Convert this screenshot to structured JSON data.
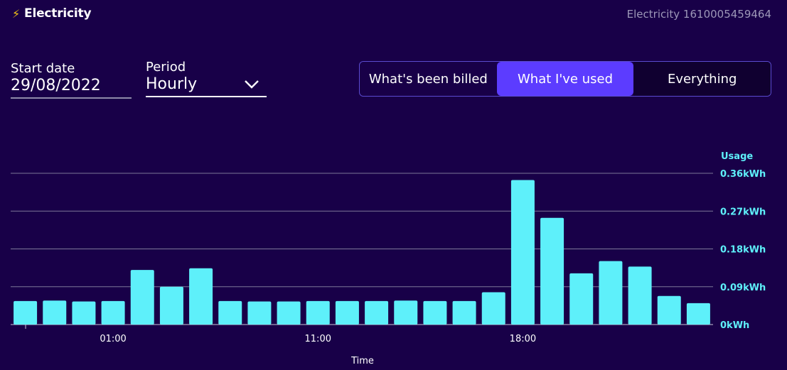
{
  "header": {
    "title": "Electricity",
    "account_label": "Electricity 1610005459464"
  },
  "filters": {
    "start_date_label": "Start date",
    "start_date_value": "29/08/2022",
    "period_label": "Period",
    "period_value": "Hourly"
  },
  "toggle": {
    "options": [
      "What's been billed",
      "What I've used",
      "Everything"
    ],
    "selected": "What I've used"
  },
  "colors": {
    "bar": "#5ef0fa",
    "accent": "#5c3cff",
    "background": "#180048",
    "grid": "#7d7899"
  },
  "chart_data": {
    "type": "bar",
    "ylabel": "Usage",
    "xlabel": "Time",
    "ylim": [
      0,
      0.36
    ],
    "yticks": [
      "0kWh",
      "0.09kWh",
      "0.18kWh",
      "0.27kWh",
      "0.36kWh"
    ],
    "ytick_values": [
      0,
      0.09,
      0.18,
      0.27,
      0.36
    ],
    "xtick_labels": [
      {
        "label": "01:00",
        "index": 3
      },
      {
        "label": "11:00",
        "index": 10
      },
      {
        "label": "18:00",
        "index": 17
      }
    ],
    "grid": true,
    "values": [
      0.056,
      0.057,
      0.055,
      0.056,
      0.13,
      0.09,
      0.134,
      0.056,
      0.055,
      0.055,
      0.056,
      0.056,
      0.056,
      0.057,
      0.056,
      0.056,
      0.077,
      0.344,
      0.254,
      0.122,
      0.151,
      0.138,
      0.068,
      0.051
    ]
  }
}
